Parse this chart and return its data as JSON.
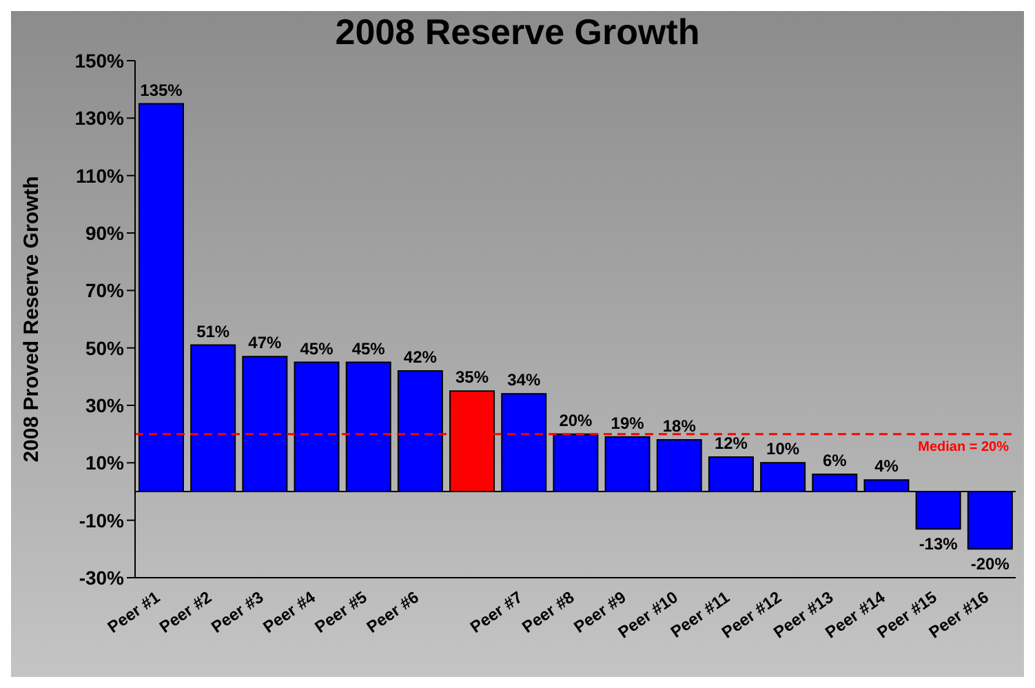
{
  "chart_data": {
    "type": "bar",
    "title": "2008 Reserve Growth",
    "ylabel": "2008 Proved Reserve Growth",
    "categories": [
      "Peer #1",
      "Peer #2",
      "Peer #3",
      "Peer #4",
      "Peer #5",
      "Peer #6",
      null,
      "Peer #7",
      "Peer #8",
      "Peer #9",
      "Peer #10",
      "Peer #11",
      "Peer #12",
      "Peer #13",
      "Peer #14",
      "Peer #15",
      "Peer #16"
    ],
    "values": [
      135,
      51,
      47,
      45,
      45,
      42,
      35,
      34,
      20,
      19,
      18,
      12,
      10,
      6,
      4,
      -13,
      -20
    ],
    "value_labels": [
      "135%",
      "51%",
      "47%",
      "45%",
      "45%",
      "42%",
      "35%",
      "34%",
      "20%",
      "19%",
      "18%",
      "12%",
      "10%",
      "6%",
      "4%",
      "-13%",
      "-20%"
    ],
    "colors": [
      "#0000ff",
      "#0000ff",
      "#0000ff",
      "#0000ff",
      "#0000ff",
      "#0000ff",
      "#ff0000",
      "#0000ff",
      "#0000ff",
      "#0000ff",
      "#0000ff",
      "#0000ff",
      "#0000ff",
      "#0000ff",
      "#0000ff",
      "#0000ff",
      "#0000ff"
    ],
    "ylim": [
      -30,
      150
    ],
    "yticks": [
      {
        "value": -30,
        "label": "-30%"
      },
      {
        "value": -10,
        "label": "-10%"
      },
      {
        "value": 10,
        "label": "10%"
      },
      {
        "value": 30,
        "label": "30%"
      },
      {
        "value": 50,
        "label": "50%"
      },
      {
        "value": 70,
        "label": "70%"
      },
      {
        "value": 90,
        "label": "90%"
      },
      {
        "value": 110,
        "label": "110%"
      },
      {
        "value": 130,
        "label": "130%"
      },
      {
        "value": 150,
        "label": "150%"
      }
    ],
    "ref_lines": [
      {
        "axis": "y",
        "value": 20,
        "label": "Median = 20%",
        "color": "#ff0000",
        "line_style": "dashed"
      }
    ],
    "grid": false,
    "legend": false
  }
}
